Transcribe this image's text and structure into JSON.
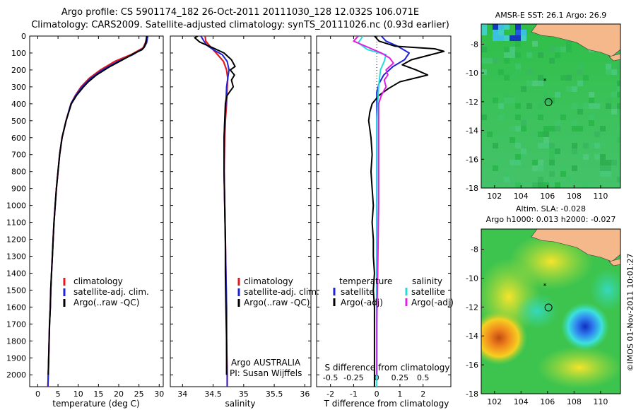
{
  "header": {
    "line1": "Argo profile: CS 5901174_182 26-Oct-2011 20111030_128 12.032S 106.071E",
    "line2": "Climatology: CARS2009. Satellite-adjusted climatology: synTS_20111026.nc (0.93d earlier)"
  },
  "colors": {
    "climatology": "#e41a1c",
    "satellite": "#1f24d6",
    "argo": "#000000",
    "sal_satellite": "#22dddd",
    "sal_argo": "#e020e0",
    "land": "#f5b88a"
  },
  "sst_map": {
    "title": "AMSR-E SST: 26.1  Argo: 26.9",
    "xticks": [
      "102",
      "104",
      "106",
      "108",
      "110"
    ],
    "yticks": [
      "-8",
      "-10",
      "-12",
      "-14",
      "-16",
      "-18"
    ],
    "xlim": [
      101,
      111.5
    ],
    "ylim": [
      -18,
      -6.6
    ],
    "argo_position": [
      106.071,
      -12.032
    ],
    "star_position": [
      105.8,
      -10.5
    ]
  },
  "sla_map": {
    "title1": "Altim. SLA: -0.028",
    "title2": "Argo h1000: 0.013 h2000: -0.027",
    "xticks": [
      "102",
      "104",
      "106",
      "108",
      "110"
    ],
    "yticks": [
      "-8",
      "-10",
      "-12",
      "-14",
      "-16",
      "-18"
    ],
    "xlim": [
      101,
      111.5
    ],
    "ylim": [
      -18,
      -6.6
    ],
    "argo_position": [
      106.071,
      -12.032
    ],
    "star_position": [
      105.8,
      -10.5
    ]
  },
  "timestamp": "©IMOS 01-Nov-2011 10:01:27",
  "chart_data": [
    {
      "type": "line",
      "xlabel": "temperature (deg C)",
      "ylabel": "",
      "xlim": [
        -2,
        31
      ],
      "ylim": [
        2070,
        0
      ],
      "xticks": [
        "0",
        "5",
        "10",
        "15",
        "20",
        "25",
        "30"
      ],
      "yticks": [
        "0",
        "100",
        "200",
        "300",
        "400",
        "500",
        "600",
        "700",
        "800",
        "900",
        "1000",
        "1100",
        "1200",
        "1300",
        "1400",
        "1500",
        "1600",
        "1700",
        "1800",
        "1900",
        "2000"
      ],
      "legend": [
        "climatology",
        "satellite-adj. clim.",
        "Argo(..raw -QC)"
      ],
      "legend_placement": "lower-middle",
      "series": [
        {
          "name": "climatology",
          "points": [
            [
              27,
              0
            ],
            [
              26.6,
              40
            ],
            [
              26,
              70
            ],
            [
              23,
              110
            ],
            [
              19,
              150
            ],
            [
              15.5,
              200
            ],
            [
              12.7,
              250
            ],
            [
              10.7,
              300
            ],
            [
              9.3,
              350
            ],
            [
              8.2,
              400
            ],
            [
              7,
              500
            ],
            [
              6,
              600
            ],
            [
              5.4,
              700
            ],
            [
              5,
              800
            ],
            [
              4.6,
              900
            ],
            [
              4.3,
              1000
            ],
            [
              4,
              1100
            ],
            [
              3.8,
              1200
            ],
            [
              3.6,
              1300
            ],
            [
              3.4,
              1400
            ],
            [
              3.2,
              1500
            ],
            [
              3.1,
              1600
            ],
            [
              2.9,
              1700
            ],
            [
              2.8,
              1800
            ],
            [
              2.7,
              1900
            ],
            [
              2.6,
              2000
            ],
            [
              2.5,
              2070
            ]
          ]
        },
        {
          "name": "satellite-adj. clim.",
          "points": [
            [
              27.2,
              0
            ],
            [
              26.9,
              40
            ],
            [
              26.2,
              70
            ],
            [
              23.5,
              110
            ],
            [
              19.8,
              150
            ],
            [
              16,
              200
            ],
            [
              13,
              250
            ],
            [
              10.9,
              300
            ],
            [
              9.4,
              350
            ],
            [
              8.2,
              400
            ],
            [
              7,
              500
            ],
            [
              6,
              600
            ],
            [
              5.4,
              700
            ],
            [
              5,
              800
            ],
            [
              4.6,
              900
            ],
            [
              4.3,
              1000
            ],
            [
              4,
              1100
            ],
            [
              3.8,
              1200
            ],
            [
              3.6,
              1300
            ],
            [
              3.4,
              1400
            ],
            [
              3.2,
              1500
            ],
            [
              3.1,
              1600
            ],
            [
              2.9,
              1700
            ],
            [
              2.8,
              1800
            ],
            [
              2.7,
              1900
            ],
            [
              2.6,
              2000
            ],
            [
              2.5,
              2070
            ]
          ]
        },
        {
          "name": "Argo(..raw -QC)",
          "points": [
            [
              26.9,
              0
            ],
            [
              26.8,
              30
            ],
            [
              26.4,
              60
            ],
            [
              25.8,
              80
            ],
            [
              24,
              100
            ],
            [
              21,
              140
            ],
            [
              17.5,
              185
            ],
            [
              14.5,
              230
            ],
            [
              12.5,
              270
            ],
            [
              11.3,
              300
            ],
            [
              9.6,
              350
            ],
            [
              8.3,
              400
            ],
            [
              7,
              500
            ],
            [
              6,
              600
            ],
            [
              5.4,
              700
            ],
            [
              5,
              800
            ],
            [
              4.6,
              900
            ],
            [
              4.3,
              1000
            ],
            [
              4,
              1100
            ],
            [
              3.8,
              1200
            ],
            [
              3.6,
              1300
            ],
            [
              3.4,
              1400
            ],
            [
              3.2,
              1500
            ],
            [
              3.1,
              1600
            ],
            [
              2.9,
              1700
            ],
            [
              2.8,
              1800
            ],
            [
              2.7,
              1900
            ],
            [
              2.6,
              2000
            ]
          ]
        }
      ]
    },
    {
      "type": "line",
      "xlabel": "salinity",
      "ylabel": "",
      "xlim": [
        33.8,
        36.1
      ],
      "ylim": [
        2070,
        0
      ],
      "xticks": [
        "34",
        "34.5",
        "35",
        "35.5",
        "36"
      ],
      "legend": [
        "climatology",
        "satellite-adj. clim.",
        "Argo(..raw -QC)"
      ],
      "legend_placement": "lower-middle",
      "annotations": [
        "Argo AUSTRALIA",
        "PI: Susan Wijffels"
      ],
      "series": [
        {
          "name": "climatology",
          "points": [
            [
              34.37,
              0
            ],
            [
              34.38,
              30
            ],
            [
              34.45,
              60
            ],
            [
              34.55,
              100
            ],
            [
              34.67,
              150
            ],
            [
              34.72,
              200
            ],
            [
              34.74,
              250
            ],
            [
              34.73,
              300
            ],
            [
              34.72,
              400
            ],
            [
              34.7,
              500
            ],
            [
              34.69,
              600
            ],
            [
              34.68,
              800
            ],
            [
              34.69,
              1000
            ],
            [
              34.7,
              1200
            ],
            [
              34.71,
              1400
            ],
            [
              34.72,
              1600
            ],
            [
              34.72,
              1800
            ],
            [
              34.73,
              2000
            ],
            [
              34.73,
              2070
            ]
          ]
        },
        {
          "name": "satellite-adj. clim.",
          "points": [
            [
              34.3,
              0
            ],
            [
              34.35,
              30
            ],
            [
              34.4,
              55
            ],
            [
              34.5,
              80
            ],
            [
              34.65,
              110
            ],
            [
              34.73,
              150
            ],
            [
              34.76,
              200
            ],
            [
              34.74,
              250
            ],
            [
              34.72,
              300
            ],
            [
              34.71,
              400
            ],
            [
              34.69,
              500
            ],
            [
              34.68,
              600
            ],
            [
              34.68,
              800
            ],
            [
              34.69,
              1000
            ],
            [
              34.7,
              1200
            ],
            [
              34.71,
              1400
            ],
            [
              34.72,
              1600
            ],
            [
              34.72,
              1800
            ],
            [
              34.73,
              2000
            ],
            [
              34.73,
              2070
            ]
          ]
        },
        {
          "name": "Argo(..raw -QC)",
          "points": [
            [
              34.25,
              0
            ],
            [
              34.2,
              10
            ],
            [
              34.28,
              35
            ],
            [
              34.5,
              70
            ],
            [
              34.68,
              100
            ],
            [
              34.8,
              140
            ],
            [
              34.86,
              180
            ],
            [
              34.78,
              200
            ],
            [
              34.85,
              230
            ],
            [
              34.8,
              260
            ],
            [
              34.83,
              300
            ],
            [
              34.77,
              330
            ],
            [
              34.73,
              350
            ],
            [
              34.71,
              380
            ],
            [
              34.7,
              400
            ],
            [
              34.69,
              500
            ],
            [
              34.68,
              600
            ],
            [
              34.68,
              800
            ],
            [
              34.69,
              1000
            ],
            [
              34.7,
              1200
            ],
            [
              34.7,
              1400
            ],
            [
              34.71,
              1600
            ],
            [
              34.72,
              1800
            ],
            [
              34.72,
              2000
            ]
          ]
        }
      ]
    },
    {
      "type": "line",
      "xlabel": "T difference from climatology",
      "xlabel_top": "S difference from climatology",
      "ylabel": "",
      "xlim": [
        -2.6,
        3.2
      ],
      "ylim": [
        2070,
        0
      ],
      "xticks": [
        "-2",
        "-1",
        "0",
        "1",
        "2"
      ],
      "xticks_secondary": [
        "-0.5",
        "-0.25",
        "0",
        "0.25",
        "0.5"
      ],
      "legend_groups": [
        {
          "title": "temperature",
          "entries": [
            "satellite",
            "Argo(-adj)"
          ]
        },
        {
          "title": "salinity",
          "entries": [
            "satellite",
            "Argo(-adj)"
          ]
        }
      ],
      "series": [
        {
          "name": "temperature satellite",
          "points": [
            [
              0.2,
              0
            ],
            [
              0.4,
              30
            ],
            [
              0.9,
              60
            ],
            [
              1.4,
              100
            ],
            [
              1.2,
              140
            ],
            [
              0.7,
              180
            ],
            [
              0.3,
              230
            ],
            [
              0.1,
              280
            ],
            [
              0,
              330
            ],
            [
              0,
              2000
            ]
          ]
        },
        {
          "name": "temperature Argo(-adj)",
          "points": [
            [
              -0.1,
              0
            ],
            [
              0.1,
              30
            ],
            [
              0.8,
              60
            ],
            [
              2.5,
              75
            ],
            [
              2.9,
              90
            ],
            [
              1.5,
              140
            ],
            [
              1.1,
              170
            ],
            [
              1.7,
              200
            ],
            [
              2.2,
              230
            ],
            [
              1,
              270
            ],
            [
              0.5,
              310
            ],
            [
              0.1,
              350
            ],
            [
              -0.2,
              400
            ],
            [
              -0.3,
              450
            ],
            [
              -0.35,
              500
            ],
            [
              -0.25,
              600
            ],
            [
              -0.2,
              700
            ],
            [
              -0.25,
              800
            ],
            [
              -0.2,
              900
            ],
            [
              -0.15,
              1000
            ],
            [
              -0.2,
              1100
            ],
            [
              -0.15,
              1200
            ],
            [
              -0.15,
              1300
            ],
            [
              -0.1,
              1400
            ],
            [
              -0.15,
              1500
            ],
            [
              -0.1,
              1600
            ],
            [
              -0.1,
              1700
            ],
            [
              -0.1,
              1800
            ],
            [
              -0.1,
              1900
            ],
            [
              -0.1,
              2000
            ],
            [
              -0.1,
              2070
            ]
          ]
        },
        {
          "name": "salinity satellite",
          "points": [
            [
              -0.15,
              0
            ],
            [
              -0.2,
              40
            ],
            [
              -0.1,
              80
            ],
            [
              0.1,
              110
            ],
            [
              0.08,
              150
            ],
            [
              0.04,
              200
            ],
            [
              0.02,
              300
            ],
            [
              0,
              500
            ],
            [
              0,
              2070
            ]
          ]
        },
        {
          "name": "salinity Argo(-adj)",
          "points": [
            [
              -0.2,
              0
            ],
            [
              -0.25,
              30
            ],
            [
              -0.12,
              60
            ],
            [
              0.05,
              100
            ],
            [
              0.14,
              130
            ],
            [
              0.18,
              160
            ],
            [
              0.1,
              200
            ],
            [
              0.12,
              230
            ],
            [
              0.08,
              260
            ],
            [
              0.1,
              300
            ],
            [
              0.05,
              350
            ],
            [
              0.02,
              400
            ],
            [
              0.02,
              600
            ],
            [
              0.02,
              800
            ],
            [
              0.02,
              1000
            ],
            [
              0.01,
              1400
            ],
            [
              0,
              1700
            ],
            [
              0,
              2000
            ]
          ]
        }
      ]
    }
  ]
}
